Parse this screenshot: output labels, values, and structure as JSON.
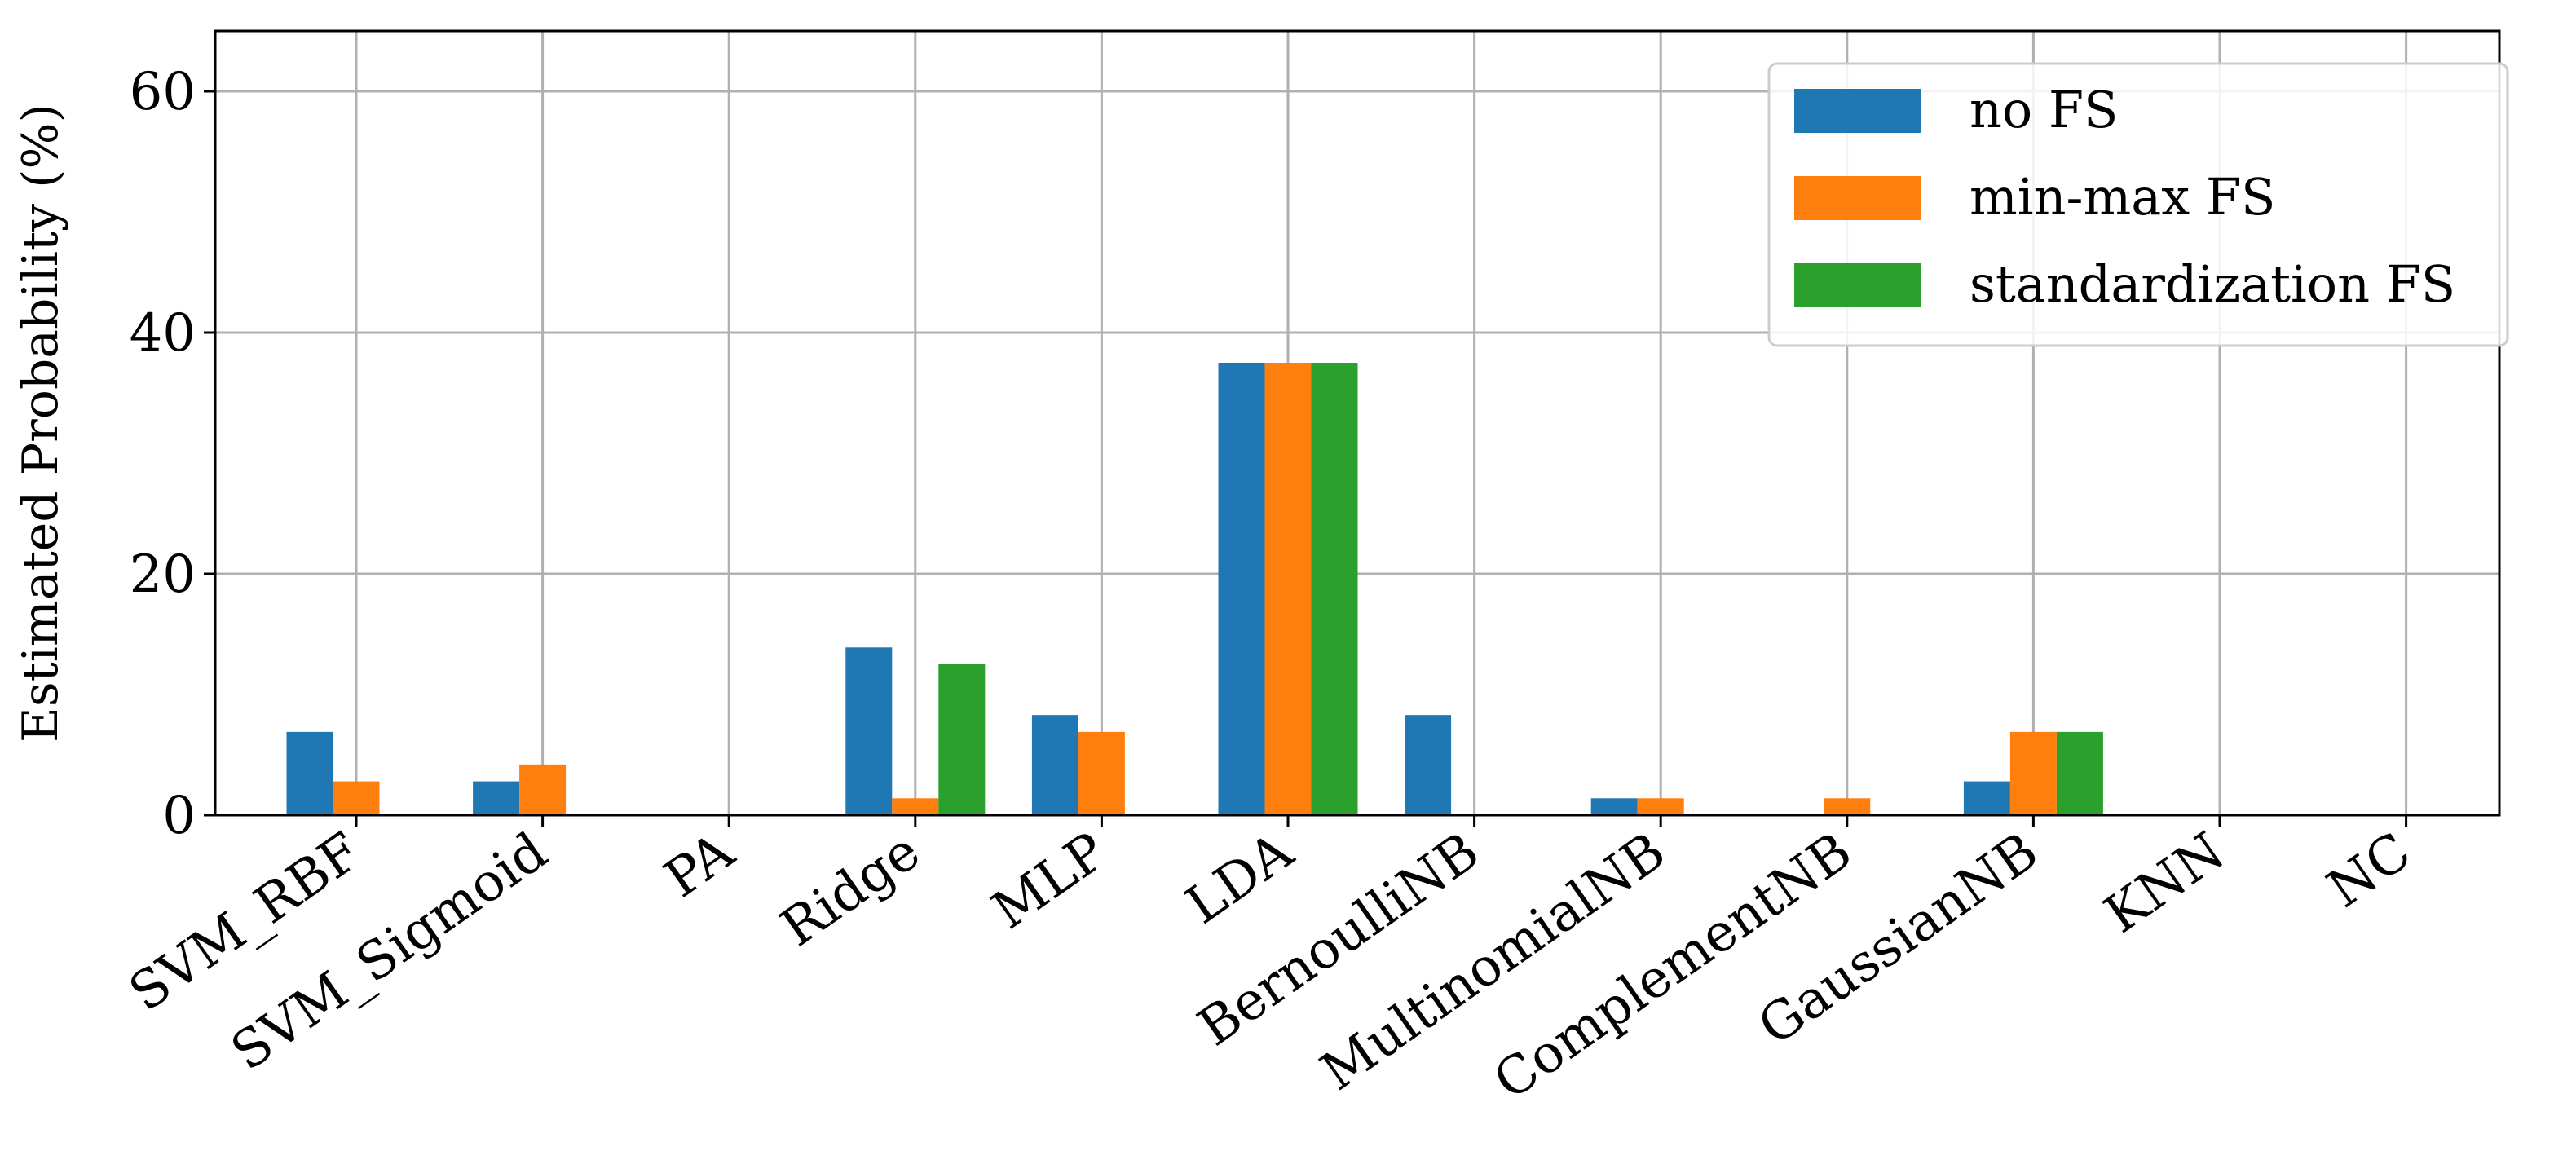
{
  "chart_data": {
    "type": "bar",
    "title": "",
    "xlabel": "",
    "ylabel": "Estimated Probability (%)",
    "ylim": [
      0,
      65
    ],
    "yticks": [
      0,
      20,
      40,
      60
    ],
    "grid": true,
    "legend_position": "top-right",
    "categories": [
      "SVM_RBF",
      "SVM_Sigmoid",
      "PA",
      "Ridge",
      "MLP",
      "LDA",
      "BernoulliNB",
      "MultinomialNB",
      "ComplementNB",
      "GaussianNB",
      "KNN",
      "NC"
    ],
    "series": [
      {
        "name": "no FS",
        "color": "#1f77b4",
        "values": [
          6.9,
          2.8,
          0,
          13.9,
          8.3,
          37.5,
          8.3,
          1.4,
          0,
          2.8,
          0,
          0
        ]
      },
      {
        "name": "min-max FS",
        "color": "#ff7f0e",
        "values": [
          2.8,
          4.2,
          0,
          1.4,
          6.9,
          37.5,
          0,
          1.4,
          1.4,
          6.9,
          0,
          0
        ]
      },
      {
        "name": "standardization FS",
        "color": "#2ca02c",
        "values": [
          0,
          0,
          0,
          12.5,
          0,
          37.5,
          0,
          0,
          0,
          6.9,
          0,
          0
        ]
      }
    ]
  }
}
